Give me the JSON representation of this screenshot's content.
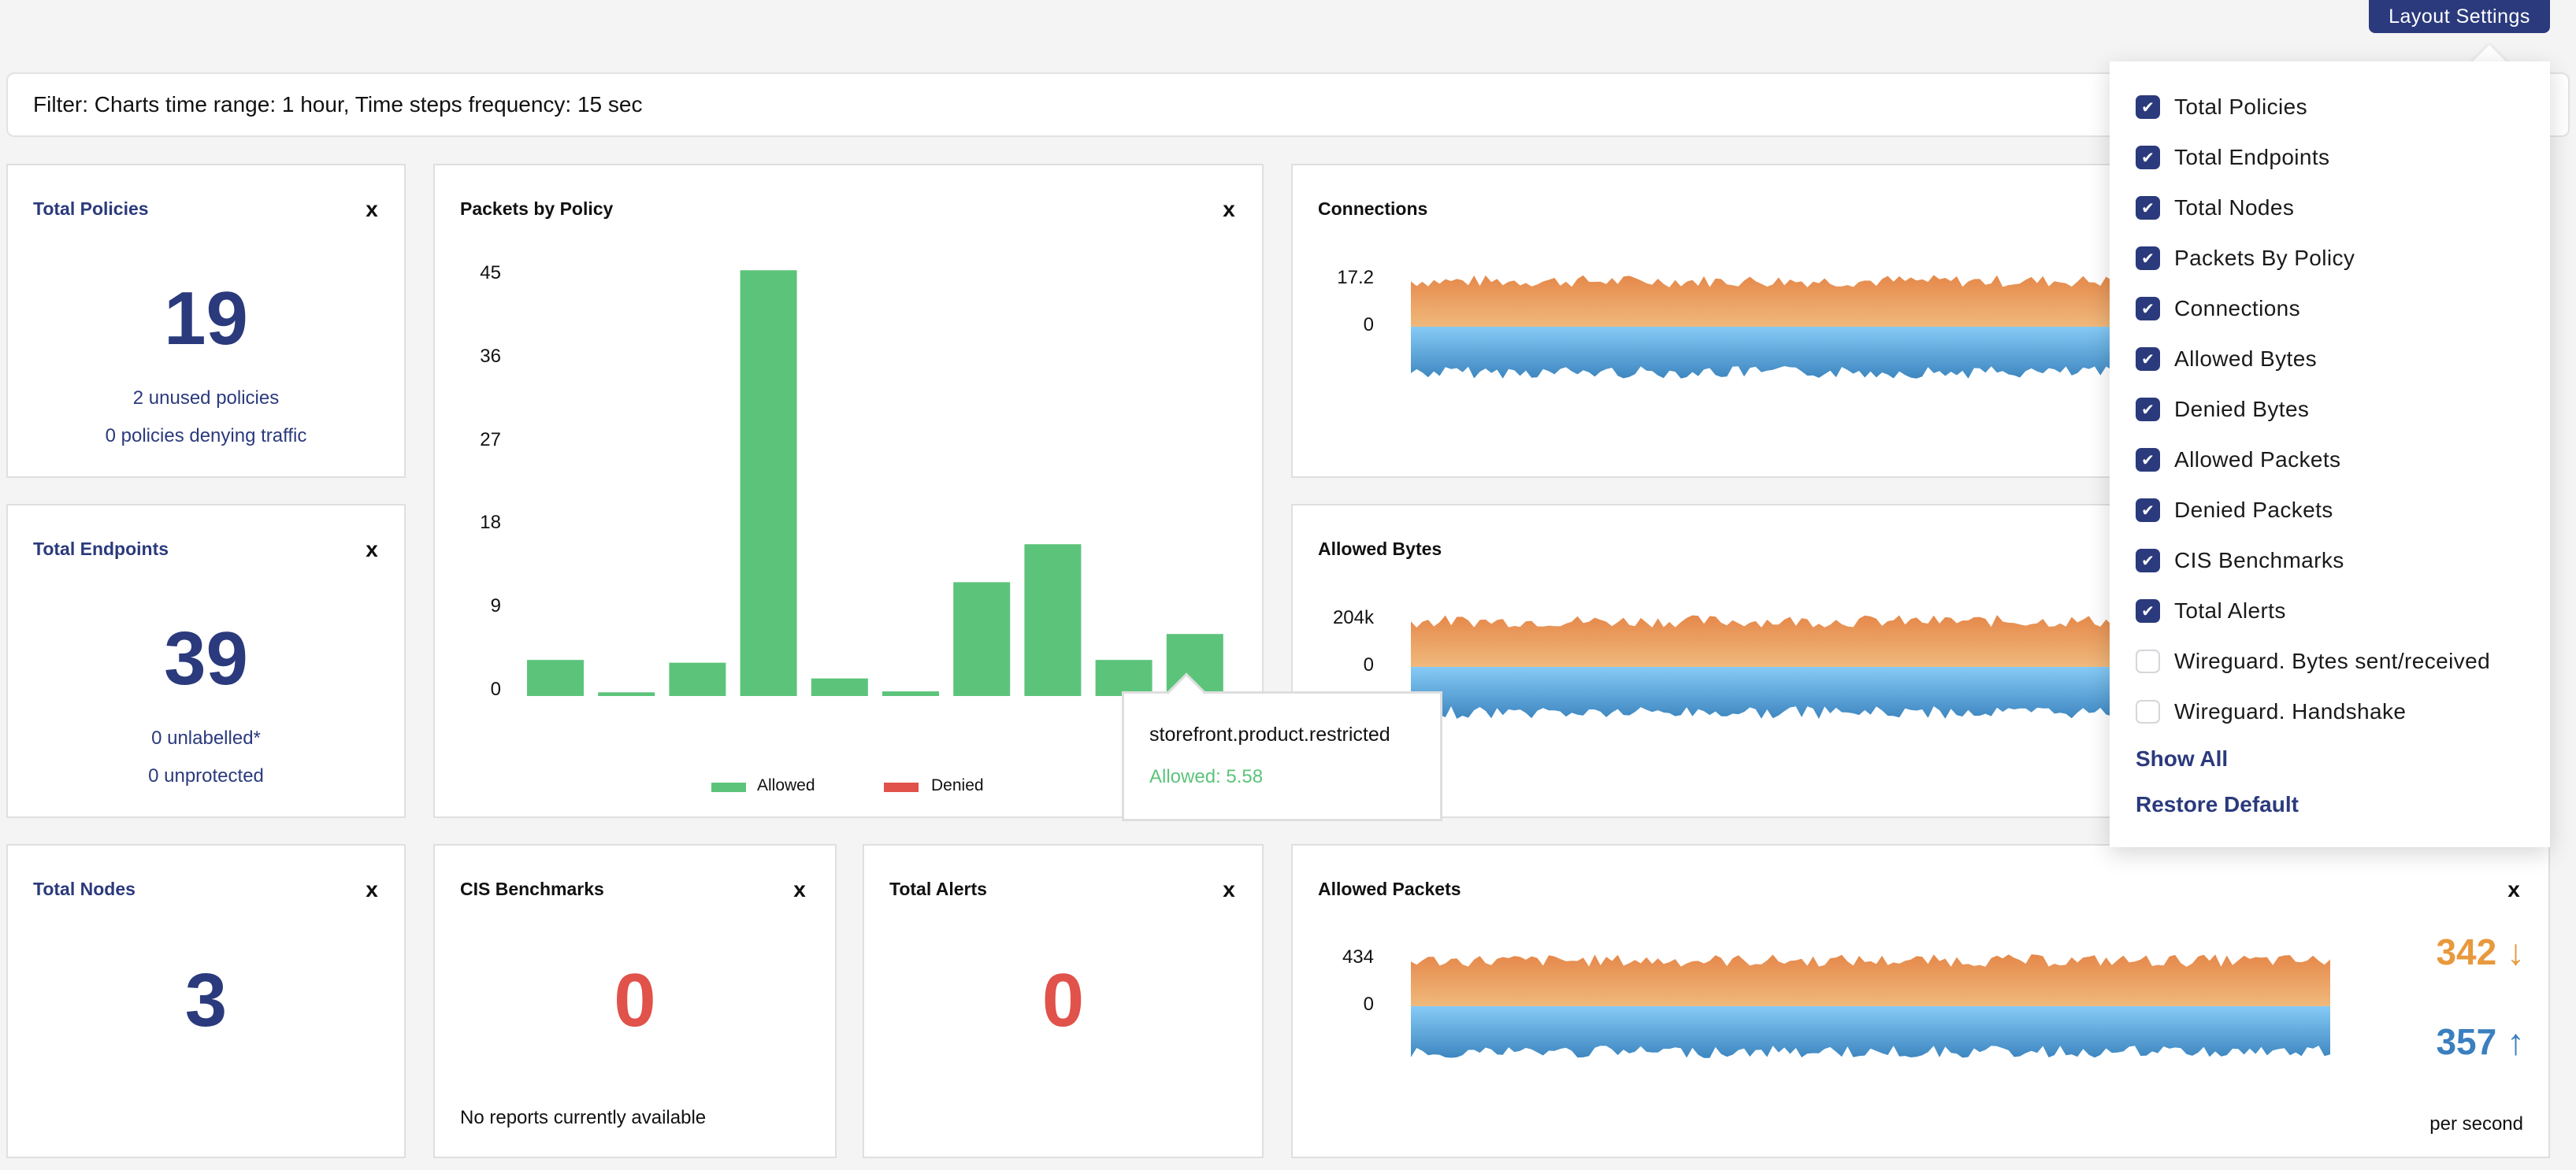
{
  "header": {
    "layout_settings_label": "Layout Settings"
  },
  "filter": {
    "text": "Filter: Charts time range: 1 hour, Time steps frequency: 15 sec"
  },
  "cards": {
    "total_policies": {
      "title": "Total Policies",
      "value": "19",
      "lines": [
        "2 unused policies",
        "0 policies denying traffic"
      ]
    },
    "total_endpoints": {
      "title": "Total Endpoints",
      "value": "39",
      "lines": [
        "0 unlabelled*",
        "0 unprotected"
      ]
    },
    "total_nodes": {
      "title": "Total Nodes",
      "value": "3"
    },
    "cis_benchmarks": {
      "title": "CIS Benchmarks",
      "value": "0",
      "note": "No reports currently available"
    },
    "total_alerts": {
      "title": "Total Alerts",
      "value": "0"
    },
    "allowed_packets_stats": {
      "down_value": "342",
      "up_value": "357",
      "unit": "per second"
    }
  },
  "close_label": "x",
  "tooltip": {
    "label": "storefront.product.restricted",
    "value_text": "Allowed: 5.58"
  },
  "layout_settings": {
    "items": [
      {
        "label": "Total Policies",
        "checked": true
      },
      {
        "label": "Total Endpoints",
        "checked": true
      },
      {
        "label": "Total Nodes",
        "checked": true
      },
      {
        "label": "Packets By Policy",
        "checked": true
      },
      {
        "label": "Connections",
        "checked": true
      },
      {
        "label": "Allowed Bytes",
        "checked": true
      },
      {
        "label": "Denied Bytes",
        "checked": true
      },
      {
        "label": "Allowed Packets",
        "checked": true
      },
      {
        "label": "Denied Packets",
        "checked": true
      },
      {
        "label": "CIS Benchmarks",
        "checked": true
      },
      {
        "label": "Total Alerts",
        "checked": true
      },
      {
        "label": "Wireguard. Bytes sent/received",
        "checked": false
      },
      {
        "label": "Wireguard. Handshake",
        "checked": false
      }
    ],
    "show_all": "Show All",
    "restore_default": "Restore Default"
  },
  "colors": {
    "navy": "#2b3a7c",
    "allowed": "#5cc47a",
    "denied": "#e0524a",
    "orange": "#e8904a",
    "blue": "#3f8ac4",
    "stat_down": "#e8993e",
    "stat_up": "#3a7fbf"
  },
  "chart_data": [
    {
      "type": "bar",
      "title": "Packets by Policy",
      "y_ticks": [
        "0",
        "9",
        "18",
        "27",
        "36",
        "45"
      ],
      "ylim": [
        0,
        45
      ],
      "grid": false,
      "legend": "bottom",
      "series": [
        {
          "name": "Allowed",
          "values": [
            3.9,
            0.4,
            3.6,
            46,
            1.9,
            0.5,
            12.3,
            16.4,
            3.9,
            6.7
          ]
        },
        {
          "name": "Denied",
          "values": [
            0,
            0,
            0,
            0,
            0,
            0,
            0,
            0,
            0,
            0
          ]
        }
      ]
    },
    {
      "type": "area",
      "title": "Connections",
      "y_ticks": [
        "0",
        "17.2"
      ],
      "ylim": [
        -17.2,
        17.2
      ]
    },
    {
      "type": "area",
      "title": "Allowed Bytes",
      "y_ticks": [
        "0",
        "204k"
      ],
      "ylim": [
        -204000,
        204000
      ]
    },
    {
      "type": "area",
      "title": "Allowed Packets",
      "y_ticks": [
        "0",
        "434"
      ],
      "ylim": [
        -434,
        434
      ]
    }
  ]
}
